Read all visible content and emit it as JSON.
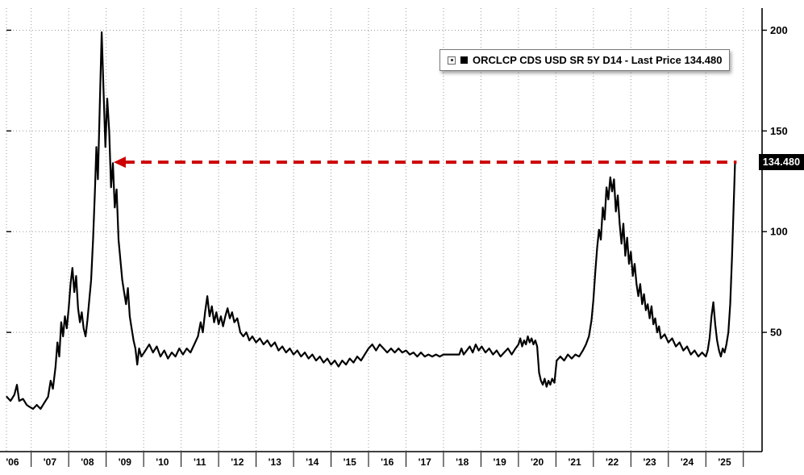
{
  "legend": {
    "label": "ORCLCP CDS USD SR 5Y D14 - Last Price 134.480"
  },
  "price_label": "134.480",
  "colors": {
    "line": "#000000",
    "grid": "#9a9a9a",
    "axis": "#000000",
    "arrow": "#cc0000",
    "price_label_bg": "#000000",
    "price_label_fg": "#ffffff",
    "background": "#ffffff"
  },
  "chart_data": {
    "type": "line",
    "title": "ORCLCP CDS USD SR 5Y D14 - Last Price 134.480",
    "ylabel": "",
    "xlabel": "",
    "last_price": 134.48,
    "x_tick_labels": [
      "'06",
      "'07",
      "'08",
      "'09",
      "'10",
      "'11",
      "'12",
      "'13",
      "'14",
      "'15",
      "'16",
      "'17",
      "'18",
      "'19",
      "'20",
      "'21",
      "'22",
      "'23",
      "'24",
      "'25"
    ],
    "y_ticks": [
      50,
      100,
      150,
      200
    ],
    "x_domain": [
      2006.34,
      2026.5
    ],
    "y_domain": [
      -9.2,
      211
    ],
    "year_gridlines": [
      2007,
      2008,
      2009,
      2010,
      2011,
      2012,
      2013,
      2014,
      2015,
      2016,
      2017,
      2018,
      2019,
      2020,
      2021,
      2022,
      2023,
      2024,
      2025,
      2026
    ],
    "grid": true,
    "legend_position": "top-right",
    "yaxis_side": "right",
    "annotation_arrow": {
      "y_value": 134.48,
      "from_year": 2025.82,
      "to_year": 2009.2,
      "color": "#cc0000",
      "style": "dashed",
      "arrowhead": "left"
    },
    "series": [
      {
        "name": "ORCLCP CDS USD SR 5Y D14 - Last Price",
        "color": "#000000",
        "points": [
          [
            2006.35,
            18
          ],
          [
            2006.45,
            16
          ],
          [
            2006.55,
            19
          ],
          [
            2006.62,
            24
          ],
          [
            2006.68,
            16
          ],
          [
            2006.78,
            17
          ],
          [
            2006.88,
            14
          ],
          [
            2006.96,
            13
          ],
          [
            2007.05,
            12
          ],
          [
            2007.15,
            14
          ],
          [
            2007.25,
            12
          ],
          [
            2007.35,
            15
          ],
          [
            2007.45,
            18
          ],
          [
            2007.52,
            26
          ],
          [
            2007.58,
            22
          ],
          [
            2007.65,
            33
          ],
          [
            2007.7,
            45
          ],
          [
            2007.75,
            38
          ],
          [
            2007.8,
            55
          ],
          [
            2007.85,
            48
          ],
          [
            2007.9,
            58
          ],
          [
            2007.95,
            52
          ],
          [
            2008.0,
            62
          ],
          [
            2008.05,
            74
          ],
          [
            2008.1,
            82
          ],
          [
            2008.15,
            70
          ],
          [
            2008.2,
            78
          ],
          [
            2008.25,
            62
          ],
          [
            2008.3,
            55
          ],
          [
            2008.35,
            60
          ],
          [
            2008.4,
            52
          ],
          [
            2008.45,
            48
          ],
          [
            2008.5,
            56
          ],
          [
            2008.55,
            66
          ],
          [
            2008.6,
            76
          ],
          [
            2008.65,
            96
          ],
          [
            2008.7,
            120
          ],
          [
            2008.74,
            142
          ],
          [
            2008.78,
            126
          ],
          [
            2008.83,
            162
          ],
          [
            2008.88,
            199
          ],
          [
            2008.93,
            170
          ],
          [
            2008.98,
            142
          ],
          [
            2009.03,
            166
          ],
          [
            2009.08,
            150
          ],
          [
            2009.13,
            122
          ],
          [
            2009.18,
            134
          ],
          [
            2009.23,
            112
          ],
          [
            2009.28,
            121
          ],
          [
            2009.33,
            96
          ],
          [
            2009.38,
            86
          ],
          [
            2009.43,
            76
          ],
          [
            2009.48,
            70
          ],
          [
            2009.53,
            64
          ],
          [
            2009.58,
            72
          ],
          [
            2009.63,
            58
          ],
          [
            2009.68,
            52
          ],
          [
            2009.73,
            46
          ],
          [
            2009.78,
            42
          ],
          [
            2009.83,
            34
          ],
          [
            2009.88,
            42
          ],
          [
            2009.94,
            38
          ],
          [
            2010.05,
            41
          ],
          [
            2010.15,
            44
          ],
          [
            2010.25,
            40
          ],
          [
            2010.35,
            43
          ],
          [
            2010.45,
            38
          ],
          [
            2010.55,
            41
          ],
          [
            2010.65,
            37
          ],
          [
            2010.75,
            40
          ],
          [
            2010.85,
            38
          ],
          [
            2010.95,
            42
          ],
          [
            2011.05,
            39
          ],
          [
            2011.15,
            42
          ],
          [
            2011.25,
            40
          ],
          [
            2011.35,
            44
          ],
          [
            2011.45,
            48
          ],
          [
            2011.52,
            55
          ],
          [
            2011.58,
            50
          ],
          [
            2011.64,
            60
          ],
          [
            2011.7,
            68
          ],
          [
            2011.76,
            58
          ],
          [
            2011.82,
            63
          ],
          [
            2011.88,
            55
          ],
          [
            2011.94,
            60
          ],
          [
            2012.0,
            54
          ],
          [
            2012.06,
            58
          ],
          [
            2012.12,
            53
          ],
          [
            2012.18,
            58
          ],
          [
            2012.24,
            62
          ],
          [
            2012.3,
            57
          ],
          [
            2012.36,
            60
          ],
          [
            2012.42,
            55
          ],
          [
            2012.5,
            57
          ],
          [
            2012.58,
            50
          ],
          [
            2012.66,
            48
          ],
          [
            2012.74,
            50
          ],
          [
            2012.82,
            46
          ],
          [
            2012.9,
            48
          ],
          [
            2013.0,
            45
          ],
          [
            2013.1,
            47
          ],
          [
            2013.2,
            44
          ],
          [
            2013.3,
            46
          ],
          [
            2013.4,
            43
          ],
          [
            2013.5,
            45
          ],
          [
            2013.6,
            41
          ],
          [
            2013.7,
            43
          ],
          [
            2013.8,
            40
          ],
          [
            2013.9,
            42
          ],
          [
            2014.0,
            39
          ],
          [
            2014.1,
            41
          ],
          [
            2014.2,
            38
          ],
          [
            2014.3,
            40
          ],
          [
            2014.4,
            37
          ],
          [
            2014.5,
            39
          ],
          [
            2014.6,
            36
          ],
          [
            2014.7,
            38
          ],
          [
            2014.8,
            35
          ],
          [
            2014.9,
            37
          ],
          [
            2015.0,
            34
          ],
          [
            2015.1,
            36
          ],
          [
            2015.2,
            33
          ],
          [
            2015.3,
            36
          ],
          [
            2015.4,
            34
          ],
          [
            2015.5,
            37
          ],
          [
            2015.6,
            35
          ],
          [
            2015.7,
            38
          ],
          [
            2015.8,
            36
          ],
          [
            2015.9,
            39
          ],
          [
            2016.0,
            42
          ],
          [
            2016.1,
            44
          ],
          [
            2016.2,
            41
          ],
          [
            2016.3,
            44
          ],
          [
            2016.4,
            42
          ],
          [
            2016.5,
            40
          ],
          [
            2016.6,
            42
          ],
          [
            2016.7,
            40
          ],
          [
            2016.8,
            42
          ],
          [
            2016.9,
            40
          ],
          [
            2017.0,
            41
          ],
          [
            2017.1,
            39
          ],
          [
            2017.2,
            40
          ],
          [
            2017.3,
            38
          ],
          [
            2017.4,
            40
          ],
          [
            2017.5,
            38
          ],
          [
            2017.6,
            39
          ],
          [
            2017.7,
            38
          ],
          [
            2017.8,
            39
          ],
          [
            2017.9,
            38
          ],
          [
            2018.0,
            39
          ],
          [
            2018.42,
            39
          ],
          [
            2018.48,
            42
          ],
          [
            2018.54,
            39
          ],
          [
            2018.62,
            41
          ],
          [
            2018.7,
            43
          ],
          [
            2018.78,
            40
          ],
          [
            2018.86,
            44
          ],
          [
            2018.94,
            41
          ],
          [
            2019.02,
            43
          ],
          [
            2019.12,
            40
          ],
          [
            2019.22,
            42
          ],
          [
            2019.32,
            39
          ],
          [
            2019.42,
            41
          ],
          [
            2019.52,
            38
          ],
          [
            2019.62,
            40
          ],
          [
            2019.72,
            42
          ],
          [
            2019.82,
            39
          ],
          [
            2019.92,
            42
          ],
          [
            2020.0,
            44
          ],
          [
            2020.05,
            47
          ],
          [
            2020.1,
            43
          ],
          [
            2020.15,
            46
          ],
          [
            2020.2,
            44
          ],
          [
            2020.25,
            48
          ],
          [
            2020.3,
            45
          ],
          [
            2020.35,
            47
          ],
          [
            2020.4,
            44
          ],
          [
            2020.45,
            46
          ],
          [
            2020.5,
            43
          ],
          [
            2020.55,
            30
          ],
          [
            2020.6,
            26
          ],
          [
            2020.65,
            24
          ],
          [
            2020.7,
            27
          ],
          [
            2020.75,
            23
          ],
          [
            2020.8,
            26
          ],
          [
            2020.85,
            24
          ],
          [
            2020.9,
            27
          ],
          [
            2020.96,
            25
          ],
          [
            2021.02,
            36
          ],
          [
            2021.12,
            38
          ],
          [
            2021.22,
            36
          ],
          [
            2021.32,
            39
          ],
          [
            2021.42,
            37
          ],
          [
            2021.52,
            39
          ],
          [
            2021.62,
            38
          ],
          [
            2021.72,
            41
          ],
          [
            2021.8,
            44
          ],
          [
            2021.88,
            48
          ],
          [
            2021.95,
            56
          ],
          [
            2022.0,
            66
          ],
          [
            2022.05,
            80
          ],
          [
            2022.1,
            92
          ],
          [
            2022.15,
            101
          ],
          [
            2022.2,
            96
          ],
          [
            2022.25,
            112
          ],
          [
            2022.3,
            106
          ],
          [
            2022.35,
            122
          ],
          [
            2022.4,
            116
          ],
          [
            2022.45,
            127
          ],
          [
            2022.5,
            120
          ],
          [
            2022.55,
            126
          ],
          [
            2022.6,
            110
          ],
          [
            2022.65,
            118
          ],
          [
            2022.7,
            104
          ],
          [
            2022.75,
            94
          ],
          [
            2022.8,
            104
          ],
          [
            2022.85,
            88
          ],
          [
            2022.9,
            97
          ],
          [
            2022.95,
            84
          ],
          [
            2023.0,
            90
          ],
          [
            2023.05,
            78
          ],
          [
            2023.1,
            84
          ],
          [
            2023.15,
            74
          ],
          [
            2023.2,
            68
          ],
          [
            2023.25,
            74
          ],
          [
            2023.3,
            64
          ],
          [
            2023.35,
            69
          ],
          [
            2023.4,
            61
          ],
          [
            2023.45,
            64
          ],
          [
            2023.5,
            57
          ],
          [
            2023.55,
            63
          ],
          [
            2023.6,
            54
          ],
          [
            2023.65,
            57
          ],
          [
            2023.7,
            50
          ],
          [
            2023.75,
            53
          ],
          [
            2023.8,
            47
          ],
          [
            2023.9,
            49
          ],
          [
            2024.0,
            45
          ],
          [
            2024.1,
            47
          ],
          [
            2024.2,
            43
          ],
          [
            2024.3,
            45
          ],
          [
            2024.4,
            41
          ],
          [
            2024.5,
            43
          ],
          [
            2024.6,
            39
          ],
          [
            2024.7,
            41
          ],
          [
            2024.8,
            38
          ],
          [
            2024.9,
            40
          ],
          [
            2025.0,
            38
          ],
          [
            2025.05,
            41
          ],
          [
            2025.1,
            47
          ],
          [
            2025.15,
            58
          ],
          [
            2025.2,
            65
          ],
          [
            2025.25,
            54
          ],
          [
            2025.3,
            46
          ],
          [
            2025.35,
            41
          ],
          [
            2025.4,
            38
          ],
          [
            2025.45,
            42
          ],
          [
            2025.5,
            40
          ],
          [
            2025.55,
            44
          ],
          [
            2025.6,
            50
          ],
          [
            2025.65,
            64
          ],
          [
            2025.7,
            88
          ],
          [
            2025.74,
            112
          ],
          [
            2025.78,
            134.48
          ]
        ]
      }
    ]
  }
}
